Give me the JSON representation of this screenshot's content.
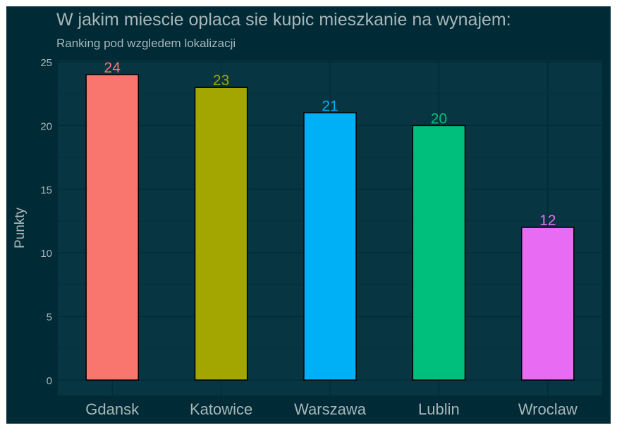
{
  "colors": {
    "outer_border": "#ffffff",
    "background": "#002b36",
    "panel": "#073642",
    "grid": "#002b36",
    "text": "#a9b6b9",
    "bar_outline": "#000000"
  },
  "chart_data": {
    "type": "bar",
    "title": "W jakim miescie oplaca sie kupic mieszkanie na wynajem:",
    "subtitle": "Ranking pod wzgledem lokalizacji",
    "xlabel": "",
    "ylabel": "Punkty",
    "categories": [
      "Gdansk",
      "Katowice",
      "Warszawa",
      "Lublin",
      "Wroclaw"
    ],
    "values": [
      24,
      23,
      21,
      20,
      12
    ],
    "data_labels": [
      "24",
      "23",
      "21",
      "20",
      "12"
    ],
    "bar_colors": [
      "#F8766D",
      "#A3A500",
      "#00B0F6",
      "#00BF7D",
      "#E76BF3"
    ],
    "ylim": [
      0,
      25
    ],
    "yticks": [
      0,
      5,
      10,
      15,
      20,
      25
    ],
    "grid": true,
    "legend": "none"
  }
}
